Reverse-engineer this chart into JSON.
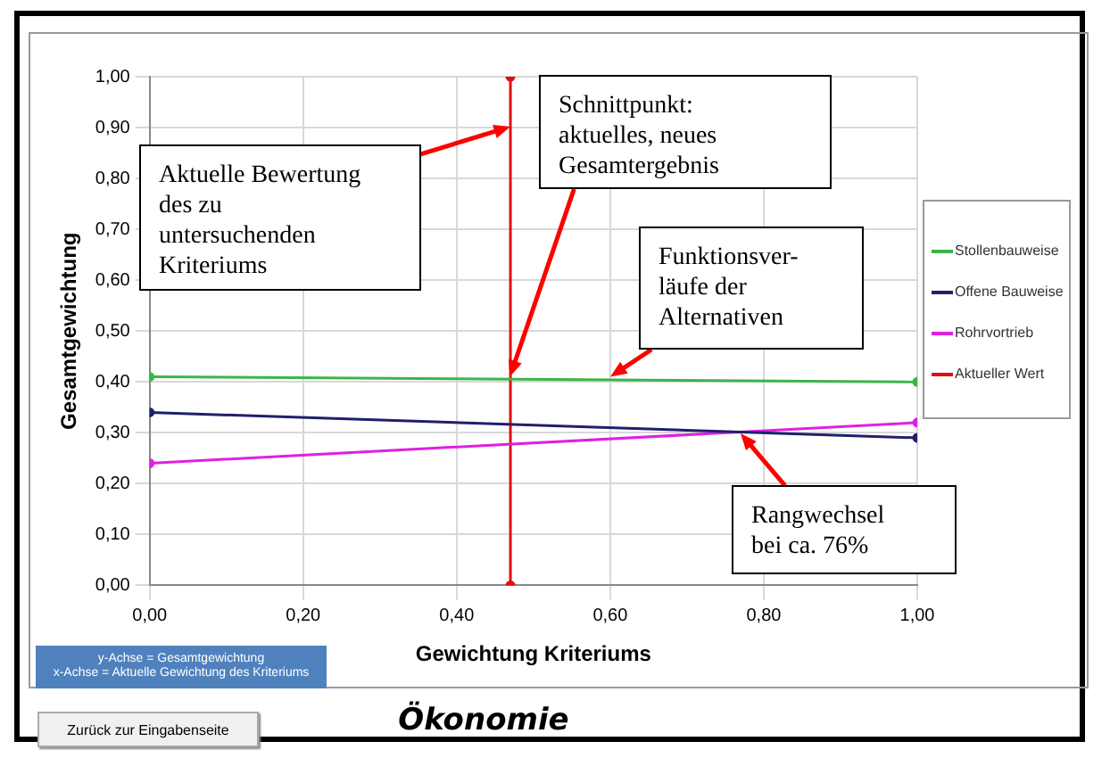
{
  "chart_data": {
    "type": "line",
    "xlabel": "Gewichtung Kriteriums",
    "ylabel": "Gesamtgewichtung",
    "title": "Ökonomie",
    "xlim": [
      0,
      1
    ],
    "xticks": [
      {
        "value": 0,
        "label": "0,00"
      },
      {
        "value": 0.2,
        "label": "0,20"
      },
      {
        "value": 0.4,
        "label": "0,40"
      },
      {
        "value": 0.6,
        "label": "0,60"
      },
      {
        "value": 0.8,
        "label": "0,80"
      },
      {
        "value": 1,
        "label": "1,00"
      }
    ],
    "ylim": [
      0,
      1
    ],
    "yticks": [
      {
        "value": 0,
        "label": "0,00"
      },
      {
        "value": 0.1,
        "label": "0,10"
      },
      {
        "value": 0.2,
        "label": "0,20"
      },
      {
        "value": 0.3,
        "label": "0,30"
      },
      {
        "value": 0.4,
        "label": "0,40"
      },
      {
        "value": 0.5,
        "label": "0,50"
      },
      {
        "value": 0.6,
        "label": "0,60"
      },
      {
        "value": 0.7,
        "label": "0,70"
      },
      {
        "value": 0.8,
        "label": "0,80"
      },
      {
        "value": 0.9,
        "label": "0,90"
      },
      {
        "value": 1,
        "label": "1,00"
      }
    ],
    "grid": true,
    "legend": "right",
    "marker": "circle",
    "series": [
      {
        "name": "Stollenbauweise",
        "color": "#3cb44b",
        "x": [
          0,
          1
        ],
        "values": [
          0.41,
          0.4
        ]
      },
      {
        "name": "Offene Bauweise",
        "color": "#1f1f6e",
        "x": [
          0,
          1
        ],
        "values": [
          0.34,
          0.29
        ]
      },
      {
        "name": "Rohrvortrieb",
        "color": "#e020e0",
        "x": [
          0,
          1
        ],
        "values": [
          0.24,
          0.32
        ]
      },
      {
        "name": "Aktueller Wert",
        "color": "#e01010",
        "x": [
          0.47,
          0.47
        ],
        "values": [
          0,
          1
        ]
      }
    ],
    "annotations": [
      {
        "text": "Aktuelle Bewertung\ndes zu\nuntersuchenden\nKriteriums",
        "x": 0.47,
        "y": 0.9
      },
      {
        "text": "Schnittpunkt:\naktuelles, neues\nGesamtergebnis",
        "x": 0.47,
        "y": 0.41
      },
      {
        "text": "Funktionsver-\nläufe der\nAlternativen",
        "x": 0.6,
        "y": 0.41
      },
      {
        "text": "Rangwechsel\nbei ca. 76%",
        "x": 0.77,
        "y": 0.3
      },
      "y-Achse = Gesamtgewichtung\nx-Achse = Aktuelle Gewichtung des Kriteriums",
      "Zurück zur Eingabenseite"
    ]
  }
}
